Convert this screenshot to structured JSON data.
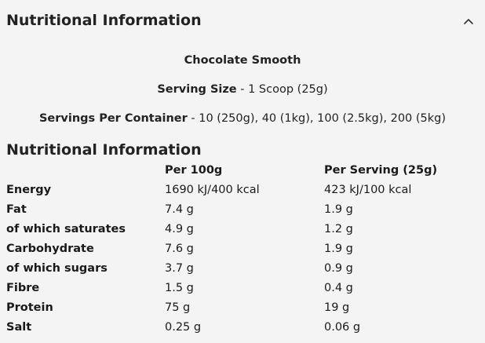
{
  "header": {
    "title": "Nutritional Information",
    "toggle_icon": "chevron-up-icon"
  },
  "product": {
    "name": "Chocolate Smooth",
    "serving_size_label": "Serving Size",
    "serving_size_value": "- 1 Scoop (25g)",
    "servings_label": "Servings Per Container",
    "servings_value": "- 10 (250g), 40 (1kg), 100 (2.5kg), 200 (5kg)"
  },
  "table": {
    "title": "Nutritional Information",
    "columns": [
      "",
      "Per 100g",
      "Per Serving (25g)"
    ],
    "rows": [
      {
        "nutrient": "Energy",
        "per100": "1690 kJ/400 kcal",
        "perServing": "423 kJ/100 kcal"
      },
      {
        "nutrient": "Fat",
        "per100": "7.4 g",
        "perServing": "1.9 g"
      },
      {
        "nutrient": "of which saturates",
        "per100": "4.9 g",
        "perServing": "1.2 g"
      },
      {
        "nutrient": "Carbohydrate",
        "per100": "7.6 g",
        "perServing": "1.9 g"
      },
      {
        "nutrient": "of which sugars",
        "per100": "3.7 g",
        "perServing": "0.9 g"
      },
      {
        "nutrient": "Fibre",
        "per100": "1.5 g",
        "perServing": "0.4 g"
      },
      {
        "nutrient": "Protein",
        "per100": "75 g",
        "perServing": "19 g"
      },
      {
        "nutrient": "Salt",
        "per100": "0.25 g",
        "perServing": "0.06 g"
      }
    ]
  }
}
